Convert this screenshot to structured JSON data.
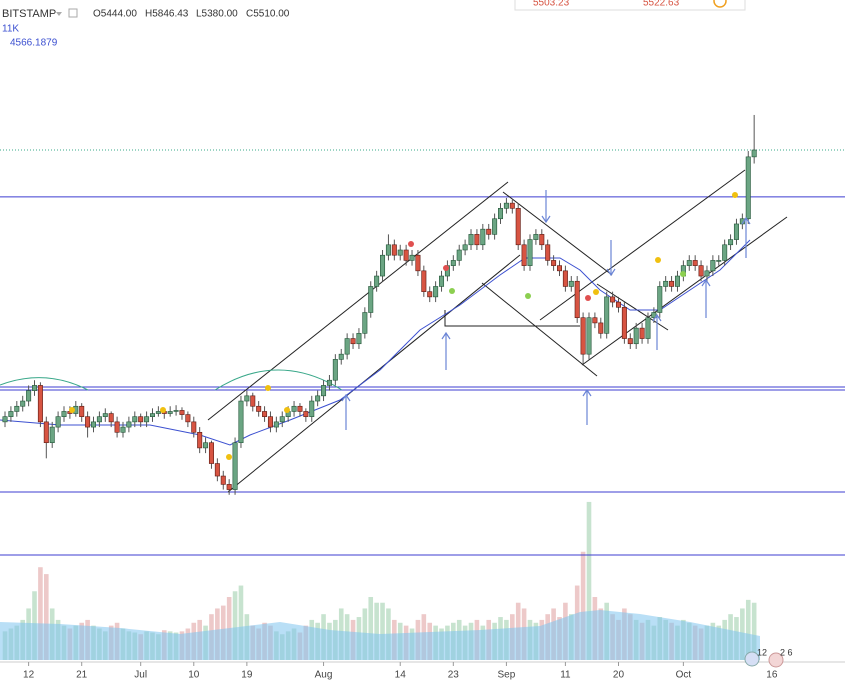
{
  "header": {
    "exchange": "BITSTAMP",
    "open": "O5444.00",
    "high": "H5846.43",
    "low": "L5380.00",
    "close": "C5510.00",
    "volume_label": "11K",
    "indicator_label": "4566.1879",
    "bid": "5503.23",
    "ask": "5522.63",
    "badge_1": "12",
    "badge_2": "2 6"
  },
  "chart_data": {
    "type": "candlestick",
    "up_color": "#6ba583",
    "down_color": "#d75442",
    "volume_up_color": "#b9dcc3",
    "volume_down_color": "#e8bcbc",
    "xlim": [
      -0.85,
      142.4
    ],
    "ylim": [
      614,
      6950
    ],
    "vlim": [
      0,
      11000
    ],
    "xticks": [
      {
        "value": 4,
        "label": "12"
      },
      {
        "value": 13,
        "label": "21"
      },
      {
        "value": 23,
        "label": "Jul"
      },
      {
        "value": 32,
        "label": "10"
      },
      {
        "value": 41,
        "label": "19"
      },
      {
        "value": 54,
        "label": "Aug"
      },
      {
        "value": 67,
        "label": "14"
      },
      {
        "value": 76,
        "label": "23"
      },
      {
        "value": 85,
        "label": "Sep"
      },
      {
        "value": 95,
        "label": "11"
      },
      {
        "value": 104,
        "label": "20"
      },
      {
        "value": 115,
        "label": "Oct"
      },
      {
        "value": 130,
        "label": "16"
      }
    ],
    "levels": [
      5060,
      3235,
      3206,
      2227,
      1622
    ],
    "candles": [
      [
        2900,
        3000,
        2850,
        2950
      ],
      [
        2950,
        3050,
        2900,
        3000
      ],
      [
        3000,
        3100,
        2950,
        3050
      ],
      [
        3050,
        3150,
        3000,
        3100
      ],
      [
        3100,
        3250,
        3050,
        3200
      ],
      [
        3200,
        3300,
        3150,
        3250
      ],
      [
        3250,
        3280,
        2850,
        2900
      ],
      [
        2900,
        2950,
        2550,
        2700
      ],
      [
        2700,
        2900,
        2650,
        2850
      ],
      [
        2850,
        3000,
        2800,
        2950
      ],
      [
        2950,
        3050,
        2900,
        3000
      ],
      [
        3000,
        3050,
        2930,
        2980
      ],
      [
        2980,
        3100,
        2950,
        3050
      ],
      [
        3050,
        3080,
        2900,
        2950
      ],
      [
        2950,
        3000,
        2750,
        2850
      ],
      [
        2850,
        2950,
        2800,
        2900
      ],
      [
        2900,
        3000,
        2850,
        2950
      ],
      [
        2950,
        3030,
        2900,
        2980
      ],
      [
        2980,
        3000,
        2850,
        2900
      ],
      [
        2900,
        2950,
        2750,
        2800
      ],
      [
        2800,
        2900,
        2750,
        2850
      ],
      [
        2850,
        2950,
        2800,
        2900
      ],
      [
        2900,
        3000,
        2850,
        2950
      ],
      [
        2950,
        2980,
        2850,
        2900
      ],
      [
        2900,
        3000,
        2850,
        2950
      ],
      [
        2950,
        3030,
        2900,
        2980
      ],
      [
        2980,
        3050,
        2950,
        3000
      ],
      [
        3000,
        3030,
        2930,
        2980
      ],
      [
        2980,
        3050,
        2950,
        3000
      ],
      [
        3000,
        3060,
        2960,
        3010
      ],
      [
        3010,
        3040,
        2920,
        2970
      ],
      [
        2970,
        3000,
        2850,
        2900
      ],
      [
        2900,
        2950,
        2750,
        2800
      ],
      [
        2800,
        2850,
        2600,
        2650
      ],
      [
        2650,
        2750,
        2600,
        2700
      ],
      [
        2700,
        2720,
        2450,
        2500
      ],
      [
        2500,
        2550,
        2330,
        2380
      ],
      [
        2380,
        2430,
        2250,
        2300
      ],
      [
        2300,
        2350,
        2200,
        2250
      ],
      [
        2250,
        2750,
        2200,
        2700
      ],
      [
        2700,
        3150,
        2650,
        3100
      ],
      [
        3100,
        3200,
        3050,
        3150
      ],
      [
        3150,
        3180,
        3000,
        3050
      ],
      [
        3050,
        3100,
        2950,
        3000
      ],
      [
        3000,
        3050,
        2900,
        2950
      ],
      [
        2950,
        3000,
        2800,
        2850
      ],
      [
        2850,
        2950,
        2800,
        2900
      ],
      [
        2900,
        3000,
        2850,
        2950
      ],
      [
        2950,
        3050,
        2900,
        3000
      ],
      [
        3000,
        3100,
        2950,
        3050
      ],
      [
        3050,
        3080,
        2950,
        3000
      ],
      [
        3000,
        3030,
        2900,
        2950
      ],
      [
        2950,
        3150,
        2900,
        3100
      ],
      [
        3100,
        3200,
        3050,
        3150
      ],
      [
        3150,
        3300,
        3100,
        3250
      ],
      [
        3250,
        3350,
        3200,
        3300
      ],
      [
        3300,
        3550,
        3250,
        3500
      ],
      [
        3500,
        3600,
        3450,
        3550
      ],
      [
        3550,
        3750,
        3500,
        3700
      ],
      [
        3700,
        3750,
        3600,
        3650
      ],
      [
        3650,
        3800,
        3600,
        3750
      ],
      [
        3750,
        4000,
        3700,
        3950
      ],
      [
        3950,
        4250,
        3900,
        4200
      ],
      [
        4200,
        4350,
        4150,
        4300
      ],
      [
        4300,
        4550,
        4250,
        4500
      ],
      [
        4500,
        4700,
        4450,
        4600
      ],
      [
        4600,
        4650,
        4450,
        4500
      ],
      [
        4500,
        4600,
        4450,
        4550
      ],
      [
        4550,
        4600,
        4400,
        4450
      ],
      [
        4450,
        4550,
        4400,
        4500
      ],
      [
        4500,
        4550,
        4300,
        4350
      ],
      [
        4350,
        4400,
        4100,
        4150
      ],
      [
        4150,
        4200,
        4050,
        4100
      ],
      [
        4100,
        4250,
        4050,
        4200
      ],
      [
        4200,
        4350,
        4150,
        4300
      ],
      [
        4300,
        4450,
        4250,
        4400
      ],
      [
        4400,
        4500,
        4350,
        4450
      ],
      [
        4450,
        4600,
        4400,
        4550
      ],
      [
        4550,
        4650,
        4500,
        4600
      ],
      [
        4600,
        4750,
        4550,
        4700
      ],
      [
        4700,
        4750,
        4550,
        4600
      ],
      [
        4600,
        4800,
        4550,
        4750
      ],
      [
        4750,
        4800,
        4650,
        4700
      ],
      [
        4700,
        4900,
        4650,
        4850
      ],
      [
        4850,
        5000,
        4800,
        4950
      ],
      [
        4950,
        5050,
        4900,
        5000
      ],
      [
        5000,
        5030,
        4900,
        4950
      ],
      [
        4950,
        5000,
        4550,
        4600
      ],
      [
        4600,
        4650,
        4350,
        4400
      ],
      [
        4400,
        4700,
        4350,
        4650
      ],
      [
        4650,
        4750,
        4600,
        4700
      ],
      [
        4700,
        4750,
        4550,
        4600
      ],
      [
        4600,
        4650,
        4400,
        4450
      ],
      [
        4450,
        4500,
        4350,
        4400
      ],
      [
        4400,
        4450,
        4300,
        4350
      ],
      [
        4350,
        4400,
        4150,
        4200
      ],
      [
        4200,
        4300,
        4150,
        4250
      ],
      [
        4250,
        4300,
        3850,
        3900
      ],
      [
        3900,
        3950,
        3450,
        3550
      ],
      [
        3550,
        3950,
        3500,
        3900
      ],
      [
        3900,
        3950,
        3800,
        3850
      ],
      [
        3850,
        3900,
        3700,
        3750
      ],
      [
        3750,
        4150,
        3700,
        4100
      ],
      [
        4100,
        4150,
        4000,
        4050
      ],
      [
        4050,
        4100,
        3950,
        4000
      ],
      [
        4000,
        4050,
        3650,
        3700
      ],
      [
        3700,
        3750,
        3600,
        3650
      ],
      [
        3650,
        3850,
        3600,
        3800
      ],
      [
        3800,
        3850,
        3650,
        3700
      ],
      [
        3700,
        3950,
        3650,
        3900
      ],
      [
        3900,
        4000,
        3850,
        3950
      ],
      [
        3950,
        4250,
        3900,
        4200
      ],
      [
        4200,
        4300,
        4150,
        4250
      ],
      [
        4250,
        4300,
        4150,
        4200
      ],
      [
        4200,
        4350,
        4150,
        4300
      ],
      [
        4300,
        4450,
        4250,
        4400
      ],
      [
        4400,
        4500,
        4350,
        4450
      ],
      [
        4450,
        4500,
        4350,
        4400
      ],
      [
        4400,
        4450,
        4250,
        4300
      ],
      [
        4300,
        4400,
        4250,
        4350
      ],
      [
        4350,
        4500,
        4300,
        4450
      ],
      [
        4450,
        4500,
        4400,
        4450
      ],
      [
        4450,
        4650,
        4400,
        4600
      ],
      [
        4600,
        4700,
        4550,
        4650
      ],
      [
        4650,
        4850,
        4600,
        4800
      ],
      [
        4800,
        4900,
        4750,
        4850
      ],
      [
        4850,
        5500,
        4800,
        5444
      ],
      [
        5444,
        5846.43,
        5380,
        5510
      ]
    ],
    "volumes": [
      500,
      550,
      600,
      700,
      900,
      1200,
      1620,
      1500,
      900,
      700,
      600,
      550,
      600,
      650,
      700,
      600,
      550,
      500,
      600,
      650,
      550,
      500,
      480,
      450,
      500,
      480,
      450,
      520,
      500,
      480,
      500,
      550,
      650,
      700,
      600,
      800,
      900,
      950,
      1100,
      1200,
      1300,
      800,
      600,
      550,
      650,
      600,
      500,
      450,
      500,
      550,
      480,
      600,
      700,
      650,
      800,
      650,
      700,
      900,
      800,
      700,
      750,
      900,
      1100,
      1000,
      1000,
      900,
      700,
      650,
      600,
      550,
      700,
      800,
      650,
      600,
      550,
      600,
      650,
      700,
      600,
      650,
      700,
      600,
      700,
      650,
      750,
      700,
      800,
      1000,
      900,
      700,
      650,
      700,
      800,
      900,
      750,
      1000,
      800,
      1300,
      1890,
      2760,
      1100,
      900,
      1000,
      800,
      700,
      900,
      800,
      700,
      650,
      700,
      600,
      750,
      700,
      650,
      600,
      700,
      650,
      600,
      550,
      600,
      650,
      600,
      700,
      800,
      750,
      900,
      1050,
      1000
    ]
  }
}
